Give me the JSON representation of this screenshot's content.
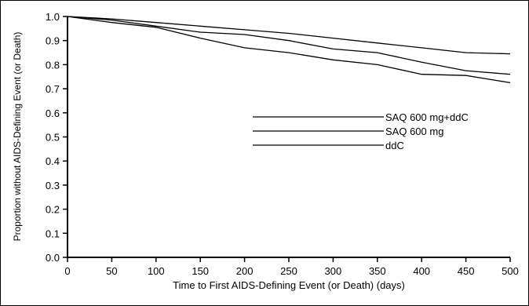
{
  "chart_data": {
    "type": "line",
    "title": "",
    "xlabel": "Time to First AIDS-Defining Event (or Death) (days)",
    "ylabel": "Proportion without AIDS-Defining Event (or Death)",
    "xlim": [
      0,
      500
    ],
    "ylim": [
      0,
      1.0
    ],
    "xticks": [
      "0",
      "50",
      "100",
      "150",
      "200",
      "250",
      "300",
      "350",
      "400",
      "450",
      "500"
    ],
    "yticks": [
      "0.0",
      "0.1",
      "0.2",
      "0.3",
      "0.4",
      "0.5",
      "0.6",
      "0.7",
      "0.8",
      "0.9",
      "1.0"
    ],
    "grid": false,
    "legend_position": "center-right",
    "line_color": "#000000",
    "series": [
      {
        "name": "SAQ 600 mg+ddC",
        "x": [
          0,
          50,
          100,
          150,
          200,
          250,
          300,
          350,
          400,
          450,
          500
        ],
        "y": [
          1.0,
          0.99,
          0.975,
          0.96,
          0.945,
          0.93,
          0.91,
          0.89,
          0.87,
          0.85,
          0.845
        ]
      },
      {
        "name": "SAQ 600 mg",
        "x": [
          0,
          50,
          100,
          150,
          200,
          250,
          300,
          350,
          400,
          450,
          500
        ],
        "y": [
          1.0,
          0.985,
          0.96,
          0.935,
          0.925,
          0.9,
          0.865,
          0.85,
          0.81,
          0.775,
          0.76
        ]
      },
      {
        "name": "ddC",
        "x": [
          0,
          50,
          100,
          150,
          200,
          250,
          300,
          350,
          400,
          450,
          500
        ],
        "y": [
          1.0,
          0.975,
          0.955,
          0.91,
          0.87,
          0.85,
          0.82,
          0.8,
          0.76,
          0.755,
          0.725
        ]
      }
    ]
  }
}
